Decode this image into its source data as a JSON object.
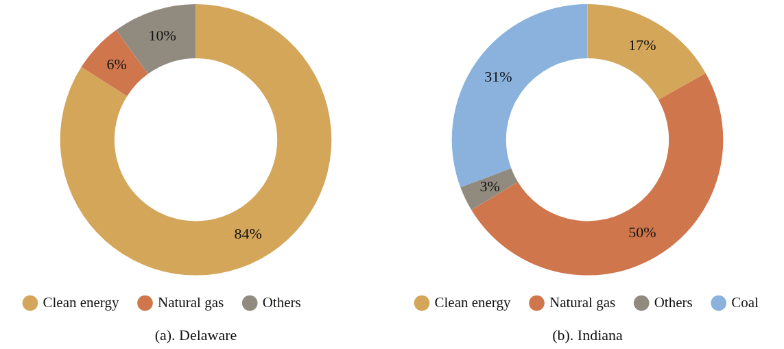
{
  "chart_data": [
    {
      "type": "donut",
      "title": "(a). Delaware",
      "categories": [
        "Clean energy",
        "Natural gas",
        "Others"
      ],
      "values": [
        84,
        6,
        10
      ],
      "value_labels": [
        "84%",
        "6%",
        "10%"
      ],
      "colors": [
        "#d4a65a",
        "#cf764d",
        "#918b7f"
      ],
      "legend": "bottom"
    },
    {
      "type": "donut",
      "title": "(b). Indiana",
      "categories": [
        "Clean energy",
        "Natural gas",
        "Others",
        "Coal"
      ],
      "values": [
        17,
        50,
        3,
        31
      ],
      "value_labels": [
        "17%",
        "50%",
        "3%",
        "31%"
      ],
      "colors": [
        "#d4a65a",
        "#cf764d",
        "#918b7f",
        "#8ab2dc"
      ],
      "legend": "bottom"
    }
  ]
}
